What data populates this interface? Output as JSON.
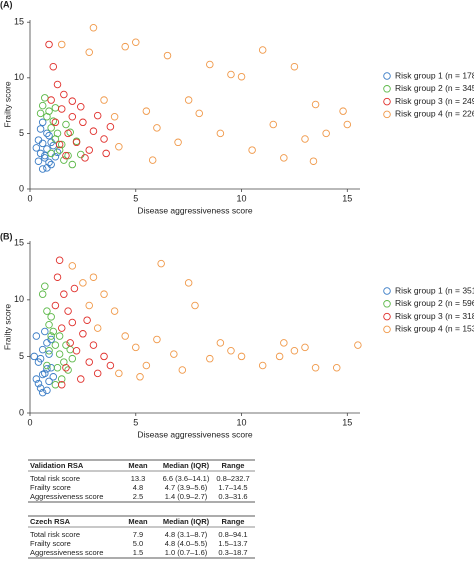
{
  "chart_data": [
    {
      "type": "scatter",
      "label": "(A)",
      "x_label": "Disease aggressiveness score",
      "y_label": "Frailty score",
      "xlim": [
        0,
        15.6
      ],
      "ylim": [
        0,
        15.2
      ],
      "xticks": [
        0,
        5,
        10,
        15
      ],
      "yticks": [
        0,
        5,
        10,
        15
      ],
      "legend": "right",
      "series": [
        {
          "name": "Risk group 1 (n = 178)",
          "color": "#3b7dc6",
          "x": [
            0.4,
            0.5,
            0.6,
            0.7,
            0.8,
            0.9,
            0.5,
            1.0,
            1.1,
            0.6,
            0.8,
            1.2,
            0.4,
            0.7,
            0.9,
            1.0,
            0.6,
            1.3,
            0.3,
            0.8
          ],
          "values": [
            2.5,
            3.2,
            4.1,
            2.8,
            3.6,
            4.8,
            5.4,
            2.2,
            3.9,
            1.8,
            5.0,
            2.9,
            4.4,
            3.0,
            2.4,
            4.2,
            6.0,
            3.3,
            3.7,
            1.9
          ]
        },
        {
          "name": "Risk group 2 (n = 345)",
          "color": "#5cb848",
          "x": [
            0.6,
            0.8,
            1.0,
            1.2,
            1.4,
            1.6,
            0.9,
            1.1,
            1.3,
            1.5,
            1.8,
            2.0,
            0.7,
            1.2,
            1.7,
            2.2,
            2.4,
            0.5,
            1.9,
            1.0
          ],
          "values": [
            7.5,
            6.5,
            5.5,
            4.5,
            3.5,
            2.6,
            7.0,
            6.1,
            5.0,
            4.0,
            3.0,
            2.2,
            8.2,
            7.3,
            5.8,
            4.3,
            3.1,
            6.8,
            5.1,
            3.2
          ]
        },
        {
          "name": "Risk group 3 (n = 249)",
          "color": "#e0302c",
          "x": [
            0.9,
            1.3,
            1.0,
            1.5,
            2.0,
            2.5,
            3.0,
            3.5,
            1.2,
            1.8,
            2.2,
            2.8,
            1.6,
            2.4,
            3.2,
            3.8,
            1.4,
            2.6,
            1.1,
            2.0,
            3.6,
            1.7
          ],
          "values": [
            13.0,
            9.4,
            8.0,
            7.2,
            6.5,
            6.0,
            5.2,
            4.5,
            6.0,
            5.0,
            4.2,
            3.5,
            8.5,
            7.4,
            6.6,
            5.6,
            4.0,
            2.8,
            11.0,
            7.9,
            3.2,
            3.0
          ]
        },
        {
          "name": "Risk group 4 (n = 226)",
          "color": "#f0994a",
          "x": [
            1.5,
            3.0,
            2.8,
            4.5,
            5.0,
            6.5,
            8.5,
            9.5,
            10.0,
            11.0,
            12.5,
            3.5,
            4.0,
            5.5,
            6.0,
            7.0,
            8.0,
            9.0,
            10.5,
            11.5,
            12.0,
            13.0,
            13.5,
            14.0,
            14.8,
            15.0,
            13.4,
            7.5,
            4.2,
            5.8
          ],
          "values": [
            13.0,
            14.5,
            12.3,
            12.8,
            13.2,
            12.0,
            11.2,
            10.3,
            10.1,
            12.5,
            11.0,
            8.0,
            6.5,
            7.0,
            5.5,
            4.2,
            6.8,
            5.0,
            3.5,
            5.8,
            2.8,
            4.5,
            7.6,
            5.0,
            7.0,
            5.8,
            2.5,
            8.0,
            3.8,
            2.6
          ]
        }
      ]
    },
    {
      "type": "scatter",
      "label": "(B)",
      "x_label": "Disease aggressiveness score",
      "y_label": "Frailty score",
      "xlim": [
        0,
        15.6
      ],
      "ylim": [
        0,
        15.2
      ],
      "xticks": [
        0,
        5,
        10,
        15
      ],
      "yticks": [
        0,
        5,
        10,
        15
      ],
      "legend": "right",
      "series": [
        {
          "name": "Risk group 1 (n = 351)",
          "color": "#3b7dc6",
          "x": [
            0.3,
            0.4,
            0.5,
            0.6,
            0.7,
            0.8,
            0.9,
            1.0,
            0.3,
            0.5,
            0.6,
            0.7,
            0.8,
            0.9,
            1.1,
            0.4,
            0.2,
            1.0,
            0.6,
            0.8
          ],
          "values": [
            3.0,
            4.5,
            2.2,
            5.6,
            3.5,
            6.2,
            2.8,
            4.0,
            6.8,
            4.8,
            1.8,
            7.2,
            3.9,
            5.2,
            3.2,
            2.6,
            5.0,
            6.5,
            3.4,
            2.0
          ]
        },
        {
          "name": "Risk group 2 (n = 596)",
          "color": "#5cb848",
          "x": [
            0.6,
            0.7,
            0.8,
            0.9,
            1.0,
            1.2,
            1.4,
            1.6,
            1.8,
            1.1,
            1.3,
            1.5,
            0.9,
            1.7,
            1.2,
            2.0,
            1.0,
            1.4,
            0.8,
            1.9
          ],
          "values": [
            10.5,
            11.2,
            9.0,
            7.8,
            6.8,
            6.0,
            5.2,
            4.5,
            3.8,
            7.2,
            4.0,
            3.0,
            5.5,
            6.0,
            2.5,
            4.8,
            8.5,
            6.8,
            4.2,
            5.6
          ]
        },
        {
          "name": "Risk group 3 (n = 318)",
          "color": "#e0302c",
          "x": [
            1.4,
            1.3,
            1.6,
            1.8,
            2.0,
            2.5,
            3.0,
            3.5,
            1.5,
            2.2,
            2.8,
            3.2,
            1.7,
            2.4,
            1.2,
            1.9,
            2.7,
            3.8,
            1.5,
            2.1
          ],
          "values": [
            13.5,
            12.0,
            10.5,
            9.0,
            8.0,
            7.0,
            6.0,
            5.0,
            7.5,
            5.5,
            4.5,
            3.5,
            4.0,
            3.0,
            9.5,
            6.2,
            8.2,
            4.2,
            2.5,
            11.0
          ]
        },
        {
          "name": "Risk group 4 (n = 153)",
          "color": "#f0994a",
          "x": [
            2.0,
            2.5,
            3.0,
            3.5,
            2.8,
            4.0,
            6.2,
            7.5,
            7.8,
            3.2,
            4.5,
            5.0,
            5.5,
            6.0,
            6.8,
            7.2,
            8.5,
            9.5,
            10.0,
            11.0,
            12.0,
            12.5,
            13.0,
            13.5,
            14.5,
            15.5,
            5.2,
            4.2,
            9.0,
            11.8
          ],
          "values": [
            13.0,
            11.5,
            12.0,
            10.5,
            9.5,
            9.0,
            13.2,
            11.5,
            9.5,
            7.5,
            6.8,
            5.8,
            4.2,
            6.5,
            5.2,
            3.8,
            4.8,
            5.5,
            5.0,
            4.2,
            6.2,
            5.5,
            5.8,
            4.0,
            4.0,
            6.0,
            3.2,
            3.5,
            6.2,
            5.0
          ]
        }
      ]
    }
  ],
  "tables": [
    {
      "columns": [
        "Validation RSA",
        "Mean",
        "Median (IQR)",
        "Range"
      ],
      "rows": [
        [
          "Total risk score",
          "13.3",
          "6.6 (3.6–14.1)",
          "0.8–232.7"
        ],
        [
          "Frailty score",
          "4.8",
          "4.7 (3.9–5.6)",
          "1.7–14.5"
        ],
        [
          "Aggressiveness score",
          "2.5",
          "1.4 (0.9–2.7)",
          "0.3–31.6"
        ]
      ]
    },
    {
      "columns": [
        "Czech RSA",
        "Mean",
        "Median (IQR)",
        "Range"
      ],
      "rows": [
        [
          "Total risk score",
          "7.9",
          "4.8 (3.1–8.7)",
          "0.8–94.1"
        ],
        [
          "Frailty score",
          "5.0",
          "4.8 (4.0–5.5)",
          "1.5–13.7"
        ],
        [
          "Aggressiveness score",
          "1.5",
          "1.0 (0.7–1.6)",
          "0.3–18.7"
        ]
      ]
    }
  ]
}
